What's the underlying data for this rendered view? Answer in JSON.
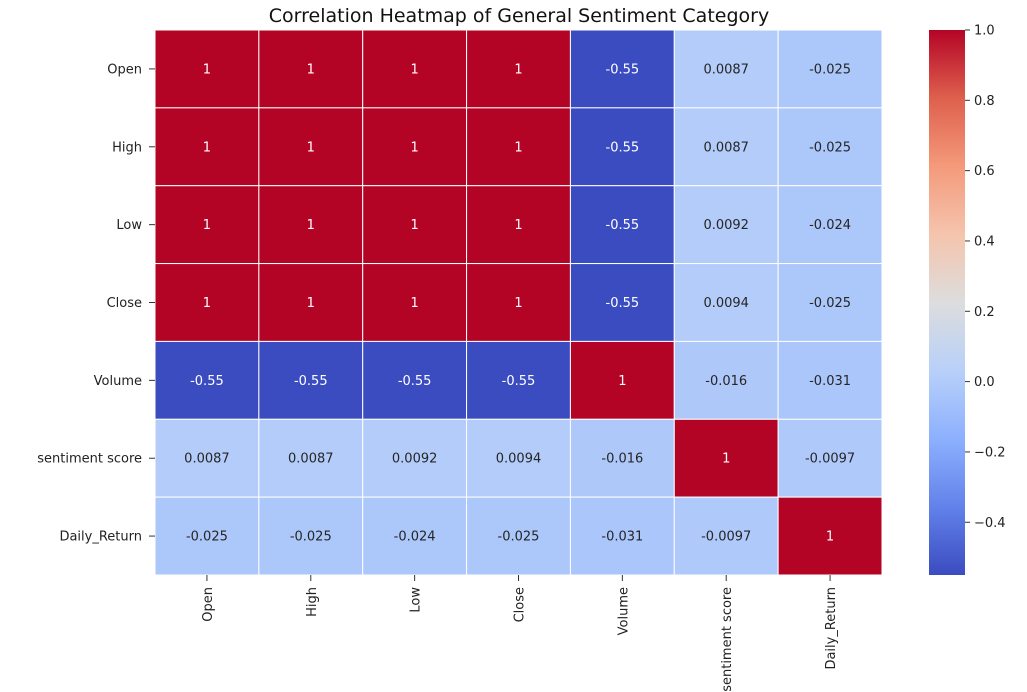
{
  "chart_data": {
    "type": "heatmap",
    "title": "Correlation Heatmap of General Sentiment Category",
    "rows": [
      "Open",
      "High",
      "Low",
      "Close",
      "Volume",
      "sentiment score",
      "Daily_Return"
    ],
    "columns": [
      "Open",
      "High",
      "Low",
      "Close",
      "Volume",
      "sentiment score",
      "Daily_Return"
    ],
    "values": [
      [
        1,
        1,
        1,
        1,
        -0.55,
        0.0087,
        -0.025
      ],
      [
        1,
        1,
        1,
        1,
        -0.55,
        0.0087,
        -0.025
      ],
      [
        1,
        1,
        1,
        1,
        -0.55,
        0.0092,
        -0.024
      ],
      [
        1,
        1,
        1,
        1,
        -0.55,
        0.0094,
        -0.025
      ],
      [
        -0.55,
        -0.55,
        -0.55,
        -0.55,
        1,
        -0.016,
        -0.031
      ],
      [
        0.0087,
        0.0087,
        0.0092,
        0.0094,
        -0.016,
        1,
        -0.0097
      ],
      [
        -0.025,
        -0.025,
        -0.024,
        -0.025,
        -0.031,
        -0.0097,
        1
      ]
    ],
    "labels": [
      [
        "1",
        "1",
        "1",
        "1",
        "-0.55",
        "0.0087",
        "-0.025"
      ],
      [
        "1",
        "1",
        "1",
        "1",
        "-0.55",
        "0.0087",
        "-0.025"
      ],
      [
        "1",
        "1",
        "1",
        "1",
        "-0.55",
        "0.0092",
        "-0.024"
      ],
      [
        "1",
        "1",
        "1",
        "1",
        "-0.55",
        "0.0094",
        "-0.025"
      ],
      [
        "-0.55",
        "-0.55",
        "-0.55",
        "-0.55",
        "1",
        "-0.016",
        "-0.031"
      ],
      [
        "0.0087",
        "0.0087",
        "0.0092",
        "0.0094",
        "-0.016",
        "1",
        "-0.0097"
      ],
      [
        "-0.025",
        "-0.025",
        "-0.024",
        "-0.025",
        "-0.031",
        "-0.0097",
        "1"
      ]
    ],
    "colormap": "coolwarm",
    "vmin": -0.55,
    "vmax": 1.0,
    "colorbar": {
      "ticks": [
        1.0,
        0.8,
        0.6,
        0.4,
        0.2,
        0.0,
        -0.2,
        -0.4
      ],
      "tick_labels": [
        "1.0",
        "0.8",
        "0.6",
        "0.4",
        "0.2",
        "0.0",
        "−0.2",
        "−0.4"
      ]
    }
  }
}
